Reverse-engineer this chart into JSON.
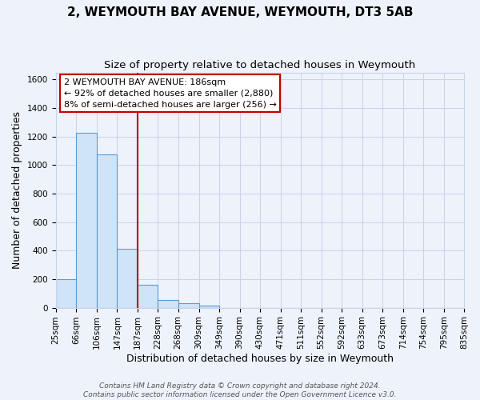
{
  "title": "2, WEYMOUTH BAY AVENUE, WEYMOUTH, DT3 5AB",
  "subtitle": "Size of property relative to detached houses in Weymouth",
  "xlabel": "Distribution of detached houses by size in Weymouth",
  "ylabel": "Number of detached properties",
  "bin_edges": [
    25,
    66,
    106,
    147,
    187,
    228,
    268,
    309,
    349,
    390,
    430,
    471,
    511,
    552,
    592,
    633,
    673,
    714,
    754,
    795,
    835
  ],
  "bin_labels": [
    "25sqm",
    "66sqm",
    "106sqm",
    "147sqm",
    "187sqm",
    "228sqm",
    "268sqm",
    "309sqm",
    "349sqm",
    "390sqm",
    "430sqm",
    "471sqm",
    "511sqm",
    "552sqm",
    "592sqm",
    "633sqm",
    "673sqm",
    "714sqm",
    "754sqm",
    "795sqm",
    "835sqm"
  ],
  "counts": [
    200,
    1225,
    1075,
    415,
    160,
    55,
    30,
    15,
    0,
    0,
    0,
    0,
    0,
    0,
    0,
    0,
    0,
    0,
    0,
    0
  ],
  "bar_color": "#d0e4f7",
  "bar_edge_color": "#5b9bd5",
  "vline_x": 187,
  "vline_color": "#c00000",
  "ylim": [
    0,
    1650
  ],
  "yticks": [
    0,
    200,
    400,
    600,
    800,
    1000,
    1200,
    1400,
    1600
  ],
  "annot_line1": "2 WEYMOUTH BAY AVENUE: 186sqm",
  "annot_line2": "← 92% of detached houses are smaller (2,880)",
  "annot_line3": "8% of semi-detached houses are larger (256) →",
  "footer_line1": "Contains HM Land Registry data © Crown copyright and database right 2024.",
  "footer_line2": "Contains public sector information licensed under the Open Government Licence v3.0.",
  "background_color": "#eef2fb",
  "grid_color": "#c8d4e8",
  "title_fontsize": 11,
  "subtitle_fontsize": 9.5,
  "axis_label_fontsize": 9,
  "tick_fontsize": 7.5,
  "annot_fontsize": 8
}
